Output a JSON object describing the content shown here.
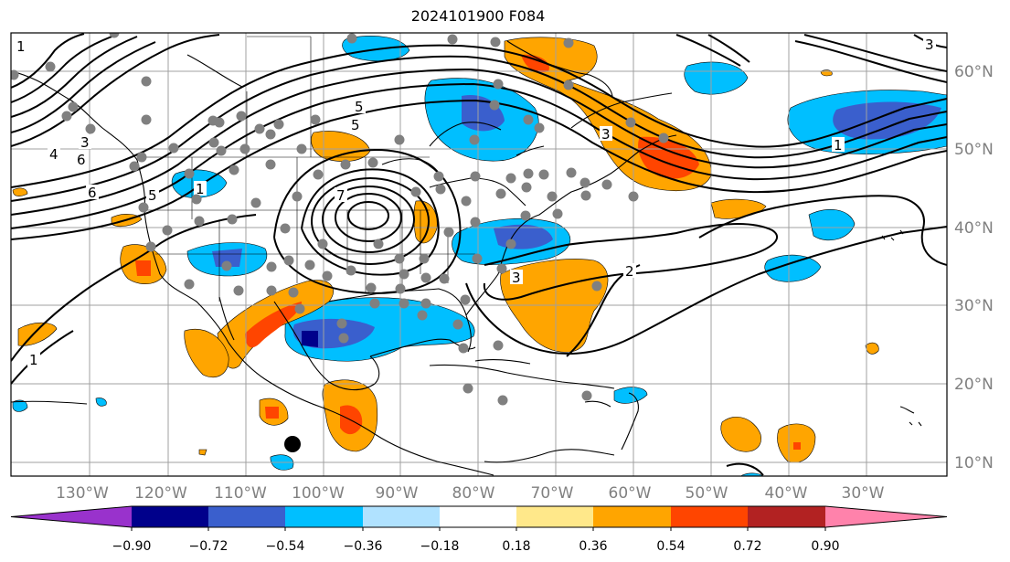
{
  "title": "2024101900 F084",
  "lat_labels": [
    "60°N",
    "50°N",
    "40°N",
    "30°N",
    "20°N",
    "10°N"
  ],
  "lon_labels": [
    "130°W",
    "120°W",
    "110°W",
    "100°W",
    "90°W",
    "80°W",
    "70°W",
    "60°W",
    "50°W",
    "40°W",
    "30°W"
  ],
  "colorbar": {
    "tick_labels": [
      "−0.90",
      "−0.72",
      "−0.54",
      "−0.36",
      "−0.18",
      "0.18",
      "0.36",
      "0.54",
      "0.72",
      "0.90"
    ],
    "colors": [
      "#9932cc",
      "#00008b",
      "#3a5fcd",
      "#00bfff",
      "#b0e2ff",
      "#ffffff",
      "#ffe88a",
      "#ffa500",
      "#ff4500",
      "#b22222",
      "#ff82ab"
    ]
  },
  "contour_labels": [
    "1",
    "3",
    "4",
    "6",
    "6",
    "5",
    "5",
    "7",
    "3",
    "2",
    "1",
    "1",
    "1",
    "3",
    "5",
    "3"
  ],
  "colors": {
    "land_outline": "#000000",
    "grid": "#a0a0a0",
    "station_dot": "#808080",
    "marker": "#000000"
  }
}
